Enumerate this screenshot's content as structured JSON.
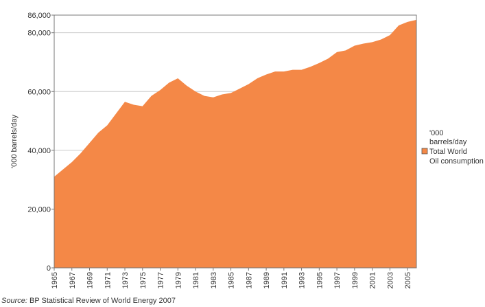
{
  "chart_data": {
    "type": "area",
    "title": "",
    "xlabel": "",
    "ylabel": "'000 barrels/day",
    "ylim": [
      0,
      86000
    ],
    "xlim": [
      1965,
      2006
    ],
    "yticks": [
      0,
      20000,
      40000,
      60000,
      80000,
      86000
    ],
    "ytick_labels": [
      "0",
      "20,000",
      "40,000",
      "60,000",
      "80,000",
      "86,000"
    ],
    "xticks": [
      1965,
      1967,
      1969,
      1971,
      1973,
      1975,
      1977,
      1979,
      1981,
      1983,
      1985,
      1987,
      1989,
      1991,
      1993,
      1995,
      1997,
      1999,
      2001,
      2003,
      2005
    ],
    "grid": "horizontal",
    "legend_position": "right",
    "legend_header": "'000 barrels/day",
    "colors": {
      "area": "#f48847",
      "frame": "#777777",
      "grid": "#cccccc"
    },
    "series": [
      {
        "name": "Total World Oil consumption",
        "x": [
          1965,
          1966,
          1967,
          1968,
          1969,
          1970,
          1971,
          1972,
          1973,
          1974,
          1975,
          1976,
          1977,
          1978,
          1979,
          1980,
          1981,
          1982,
          1983,
          1984,
          1985,
          1986,
          1987,
          1988,
          1989,
          1990,
          1991,
          1992,
          1993,
          1994,
          1995,
          1996,
          1997,
          1998,
          1999,
          2000,
          2001,
          2002,
          2003,
          2004,
          2005,
          2006
        ],
        "values": [
          31000,
          33500,
          36000,
          39000,
          42500,
          46000,
          48500,
          52500,
          56500,
          55500,
          55000,
          58500,
          60500,
          63000,
          64500,
          62000,
          60000,
          58500,
          58000,
          59000,
          59500,
          61000,
          62500,
          64500,
          65800,
          66800,
          66800,
          67400,
          67400,
          68400,
          69700,
          71200,
          73400,
          74000,
          75600,
          76300,
          76800,
          77700,
          79200,
          82500,
          83700,
          84400
        ]
      }
    ]
  },
  "source": {
    "prefix": "Source:",
    "text": "BP Statistical Review of World Energy 2007"
  }
}
